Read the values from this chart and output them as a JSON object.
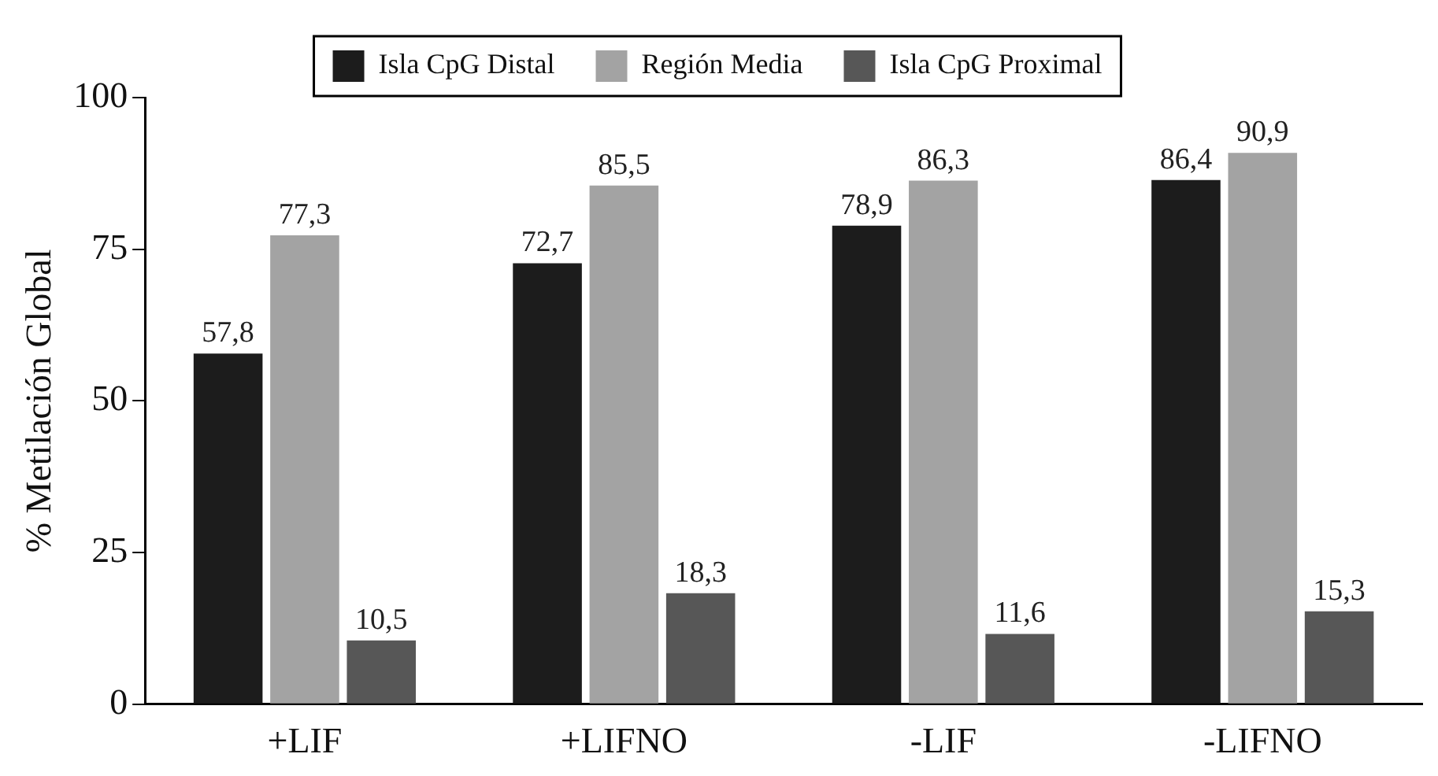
{
  "chart_data": {
    "type": "bar",
    "ylabel": "% Metilación Global",
    "categories": [
      "+LIF",
      "+LIFNO",
      "-LIF",
      "-LIFNO"
    ],
    "series": [
      {
        "name": "Isla CpG Distal",
        "color": "#1c1c1c",
        "values": [
          57.8,
          72.7,
          78.9,
          86.4
        ],
        "value_labels": [
          "57,8",
          "72,7",
          "78,9",
          "86,4"
        ]
      },
      {
        "name": "Región Media",
        "color": "#a3a3a3",
        "values": [
          77.3,
          85.5,
          86.3,
          90.9
        ],
        "value_labels": [
          "77,3",
          "85,5",
          "86,3",
          "90,9"
        ]
      },
      {
        "name": "Isla CpG Proximal",
        "color": "#575757",
        "values": [
          10.5,
          18.3,
          11.6,
          15.3
        ],
        "value_labels": [
          "10,5",
          "18,3",
          "11,6",
          "15,3"
        ]
      }
    ],
    "ylim": [
      0,
      100
    ],
    "yticks": [
      0,
      25,
      50,
      75,
      100
    ],
    "grid": false,
    "legend": "top"
  }
}
